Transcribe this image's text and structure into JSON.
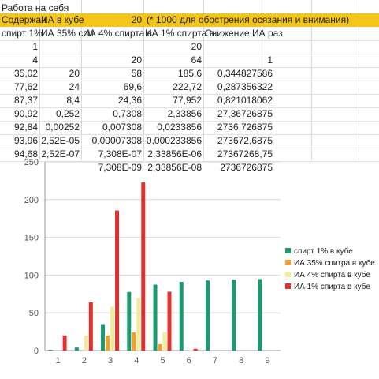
{
  "sheet": {
    "title": "Работа на себя",
    "header": {
      "a": "Содержан",
      "b": "ИА в кубе",
      "c": "20",
      "d": "(* 1000 для обострения осязания и внимания)"
    },
    "columns": [
      "спирт 1%",
      "ИА 35% спи",
      "ИА 4% спирта в",
      "ИА 1% спирта в",
      "Снижение ИА раз"
    ],
    "rows": [
      [
        "1",
        "",
        "",
        "20",
        ""
      ],
      [
        "4",
        "",
        "20",
        "64",
        "1"
      ],
      [
        "35,02",
        "20",
        "58",
        "185,6",
        "0,344827586"
      ],
      [
        "77,62",
        "24",
        "69,6",
        "222,72",
        "0,287356322"
      ],
      [
        "87,37",
        "8,4",
        "24,36",
        "77,952",
        "0,821018062"
      ],
      [
        "90,92",
        "0,252",
        "0,7308",
        "2,33856",
        "27,36726875"
      ],
      [
        "92,84",
        "0,00252",
        "0,007308",
        "0,0233856",
        "2736,726875"
      ],
      [
        "93,96",
        "2,52E-05",
        "0,00007308",
        "0,000233856",
        "273672,6875"
      ],
      [
        "94,68",
        "2,52E-07",
        "7,308E-07",
        "2,33856E-06",
        "27367268,75"
      ],
      [
        "",
        "",
        "7,308E-09",
        "2,33856E-08",
        "2736726875"
      ]
    ]
  },
  "chart_data": {
    "type": "bar",
    "categories": [
      "1",
      "2",
      "3",
      "4",
      "5",
      "6",
      "7",
      "8",
      "9"
    ],
    "ylim": [
      0,
      250
    ],
    "yticks": [
      "0",
      "50",
      "100",
      "150",
      "200",
      "250"
    ],
    "series": [
      {
        "name": "спирт 1% в кубе",
        "color": "#1a9a6e",
        "values": [
          1,
          4,
          35.02,
          77.62,
          87.37,
          90.92,
          92.84,
          93.96,
          94.68
        ]
      },
      {
        "name": "ИА 35% спитра в кубе",
        "color": "#f0a030",
        "values": [
          0,
          0,
          20,
          24,
          8.4,
          0.252,
          0.00252,
          2.52e-05,
          2.52e-07
        ]
      },
      {
        "name": "ИА 4% спирта в кубе",
        "color": "#f2ec9a",
        "values": [
          0,
          20,
          58,
          69.6,
          24.36,
          0.7308,
          0.007308,
          7.308e-05,
          7.308e-07
        ]
      },
      {
        "name": "ИА 1% спирта в кубе",
        "color": "#e03030",
        "values": [
          20,
          64,
          185.6,
          222.72,
          77.952,
          2.33856,
          0.0233856,
          0.000233856,
          2.33856e-06
        ]
      }
    ]
  }
}
